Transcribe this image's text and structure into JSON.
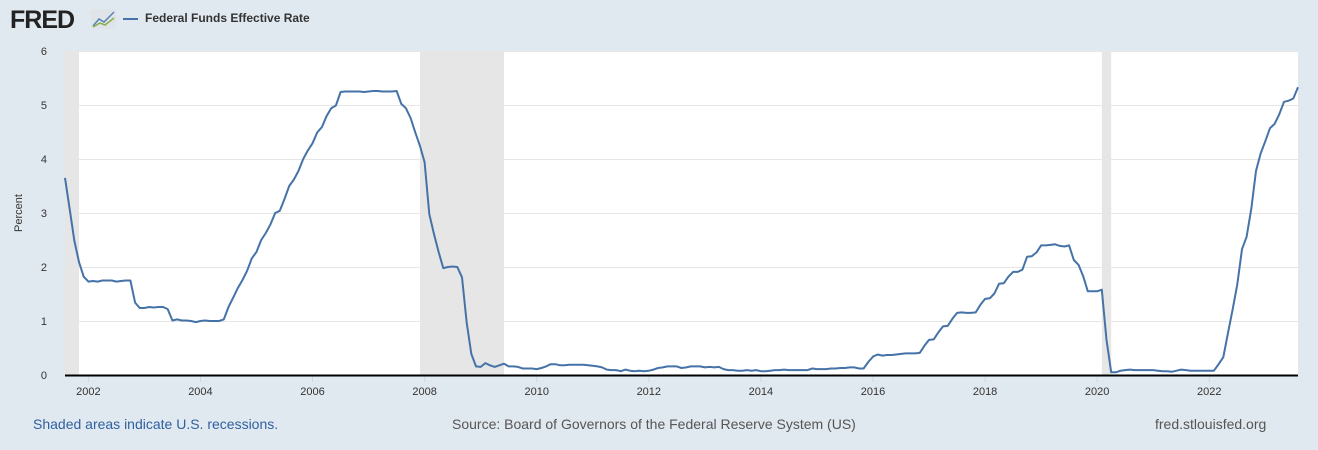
{
  "header": {
    "logo_text": "FRED",
    "legend_label": "Federal Funds Effective Rate"
  },
  "footer": {
    "recession_note": "Shaded areas indicate U.S. recessions.",
    "source": "Source: Board of Governors of the Federal Reserve System (US)",
    "site": "fred.stlouisfed.org"
  },
  "colors": {
    "series": "#4572a7",
    "recession": "#e6e6e6",
    "background": "#e1e9f0",
    "link": "#2f5f9e"
  },
  "chart_data": {
    "type": "line",
    "title": "",
    "xlabel": "",
    "ylabel": "Percent",
    "xlim": [
      "2001-08",
      "2023-08"
    ],
    "ylim": [
      0,
      6
    ],
    "yticks": [
      "0",
      "1",
      "2",
      "3",
      "4",
      "5",
      "6"
    ],
    "xticks": [
      "2002",
      "2004",
      "2006",
      "2008",
      "2010",
      "2012",
      "2014",
      "2016",
      "2018",
      "2020",
      "2022"
    ],
    "grid": "horizontal",
    "legend": "top-left",
    "recessions": [
      [
        "2001-03",
        "2001-11"
      ],
      [
        "2007-12",
        "2009-06"
      ],
      [
        "2020-02",
        "2020-04"
      ]
    ],
    "series": [
      {
        "name": "Federal Funds Effective Rate",
        "start": "2001-08",
        "frequency": "monthly",
        "values": [
          3.65,
          3.07,
          2.49,
          2.09,
          1.82,
          1.73,
          1.74,
          1.73,
          1.75,
          1.75,
          1.75,
          1.73,
          1.74,
          1.75,
          1.75,
          1.34,
          1.24,
          1.24,
          1.26,
          1.25,
          1.26,
          1.26,
          1.22,
          1.01,
          1.03,
          1.01,
          1.01,
          1.0,
          0.98,
          1.0,
          1.01,
          1.0,
          1.0,
          1.0,
          1.03,
          1.26,
          1.43,
          1.61,
          1.76,
          1.93,
          2.16,
          2.28,
          2.5,
          2.63,
          2.79,
          3.0,
          3.04,
          3.26,
          3.5,
          3.62,
          3.78,
          4.0,
          4.16,
          4.29,
          4.49,
          4.59,
          4.79,
          4.94,
          4.99,
          5.24,
          5.25,
          5.25,
          5.25,
          5.25,
          5.24,
          5.25,
          5.26,
          5.26,
          5.25,
          5.25,
          5.25,
          5.26,
          5.02,
          4.94,
          4.76,
          4.49,
          4.24,
          3.94,
          2.98,
          2.61,
          2.28,
          1.98,
          2.0,
          2.01,
          2.0,
          1.81,
          0.97,
          0.39,
          0.16,
          0.15,
          0.22,
          0.18,
          0.15,
          0.18,
          0.21,
          0.16,
          0.16,
          0.15,
          0.12,
          0.12,
          0.12,
          0.11,
          0.13,
          0.16,
          0.2,
          0.2,
          0.18,
          0.18,
          0.19,
          0.19,
          0.19,
          0.19,
          0.18,
          0.17,
          0.16,
          0.14,
          0.1,
          0.09,
          0.09,
          0.07,
          0.1,
          0.08,
          0.07,
          0.08,
          0.07,
          0.08,
          0.1,
          0.13,
          0.14,
          0.16,
          0.16,
          0.16,
          0.13,
          0.14,
          0.16,
          0.16,
          0.16,
          0.14,
          0.15,
          0.14,
          0.15,
          0.11,
          0.09,
          0.09,
          0.08,
          0.08,
          0.09,
          0.08,
          0.09,
          0.07,
          0.07,
          0.08,
          0.09,
          0.09,
          0.1,
          0.09,
          0.09,
          0.09,
          0.09,
          0.09,
          0.12,
          0.11,
          0.11,
          0.11,
          0.12,
          0.12,
          0.13,
          0.13,
          0.14,
          0.14,
          0.12,
          0.12,
          0.24,
          0.34,
          0.38,
          0.36,
          0.37,
          0.37,
          0.38,
          0.39,
          0.4,
          0.4,
          0.4,
          0.41,
          0.54,
          0.65,
          0.66,
          0.79,
          0.9,
          0.91,
          1.04,
          1.15,
          1.16,
          1.15,
          1.15,
          1.16,
          1.3,
          1.41,
          1.42,
          1.51,
          1.69,
          1.7,
          1.82,
          1.91,
          1.91,
          1.95,
          2.19,
          2.2,
          2.27,
          2.4,
          2.4,
          2.41,
          2.42,
          2.39,
          2.38,
          2.4,
          2.13,
          2.04,
          1.83,
          1.55,
          1.55,
          1.55,
          1.58,
          0.65,
          0.05,
          0.05,
          0.08,
          0.09,
          0.1,
          0.09,
          0.09,
          0.09,
          0.09,
          0.09,
          0.08,
          0.07,
          0.07,
          0.06,
          0.08,
          0.1,
          0.09,
          0.08,
          0.08,
          0.08,
          0.08,
          0.08,
          0.08,
          0.2,
          0.33,
          0.77,
          1.21,
          1.68,
          2.33,
          2.56,
          3.08,
          3.78,
          4.1,
          4.33,
          4.57,
          4.65,
          4.83,
          5.06,
          5.08,
          5.12,
          5.33
        ]
      }
    ]
  }
}
